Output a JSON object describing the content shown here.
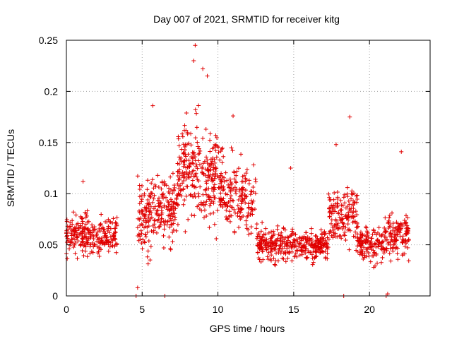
{
  "chart_data": {
    "type": "scatter",
    "title": "Day 007 of 2021, SRMTID for receiver kitg",
    "xlabel": "GPS time / hours",
    "ylabel": "SRMTID / TECUs",
    "xlim": [
      0,
      24
    ],
    "ylim": [
      0,
      0.25
    ],
    "xticks": [
      0,
      5,
      10,
      15,
      20
    ],
    "xtick_labels": [
      "0",
      "5",
      "10",
      "15",
      "20"
    ],
    "yticks": [
      0,
      0.05,
      0.1,
      0.15,
      0.2,
      0.25
    ],
    "ytick_labels": [
      "0",
      "0.05",
      "0.1",
      "0.15",
      "0.2",
      "0.25"
    ],
    "grid": true,
    "marker": "+",
    "color": "#e00000",
    "series": [
      {
        "name": "SRMTID",
        "segments": [
          {
            "x_range": [
              0.0,
              1.5
            ],
            "y_mean": 0.06,
            "y_spread": 0.022,
            "count": 130
          },
          {
            "x_range": [
              1.5,
              3.4
            ],
            "y_mean": 0.058,
            "y_spread": 0.02,
            "count": 130
          },
          {
            "x_range": [
              4.7,
              5.6
            ],
            "y_mean": 0.075,
            "y_spread": 0.045,
            "count": 90
          },
          {
            "x_range": [
              5.6,
              7.3
            ],
            "y_mean": 0.085,
            "y_spread": 0.04,
            "count": 140
          },
          {
            "x_range": [
              7.3,
              8.8
            ],
            "y_mean": 0.125,
            "y_spread": 0.06,
            "count": 150
          },
          {
            "x_range": [
              8.8,
              10.3
            ],
            "y_mean": 0.115,
            "y_spread": 0.055,
            "count": 150
          },
          {
            "x_range": [
              10.3,
              12.5
            ],
            "y_mean": 0.095,
            "y_spread": 0.04,
            "count": 160
          },
          {
            "x_range": [
              12.5,
              15.0
            ],
            "y_mean": 0.05,
            "y_spread": 0.02,
            "count": 190
          },
          {
            "x_range": [
              15.0,
              17.3
            ],
            "y_mean": 0.05,
            "y_spread": 0.018,
            "count": 180
          },
          {
            "x_range": [
              17.3,
              19.2
            ],
            "y_mean": 0.08,
            "y_spread": 0.04,
            "count": 150
          },
          {
            "x_range": [
              19.2,
              21.0
            ],
            "y_mean": 0.05,
            "y_spread": 0.02,
            "count": 140
          },
          {
            "x_range": [
              21.0,
              22.6
            ],
            "y_mean": 0.06,
            "y_spread": 0.025,
            "count": 130
          }
        ],
        "notable_points": [
          {
            "x": 8.5,
            "y": 0.245
          },
          {
            "x": 8.4,
            "y": 0.23
          },
          {
            "x": 9.0,
            "y": 0.222
          },
          {
            "x": 9.3,
            "y": 0.215
          },
          {
            "x": 5.7,
            "y": 0.186
          },
          {
            "x": 11.0,
            "y": 0.176
          },
          {
            "x": 18.7,
            "y": 0.175
          },
          {
            "x": 17.8,
            "y": 0.148
          },
          {
            "x": 22.1,
            "y": 0.141
          },
          {
            "x": 14.8,
            "y": 0.125
          },
          {
            "x": 1.1,
            "y": 0.112
          },
          {
            "x": 4.7,
            "y": 0.008
          },
          {
            "x": 4.6,
            "y": 0.0
          },
          {
            "x": 6.5,
            "y": 0.0
          },
          {
            "x": 18.3,
            "y": 0.0
          },
          {
            "x": 21.1,
            "y": 0.0
          },
          {
            "x": 21.2,
            "y": 0.002
          }
        ]
      }
    ]
  }
}
